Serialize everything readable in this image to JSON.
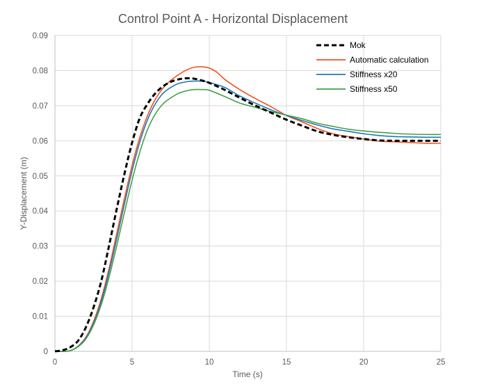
{
  "chart_data": {
    "type": "line",
    "title": "Control Point A - Horizontal Displacement",
    "xlabel": "Time (s)",
    "ylabel": "Y-Displacement (m)",
    "xlim": [
      0,
      25
    ],
    "ylim": [
      0,
      0.09
    ],
    "x_ticks": [
      0,
      5,
      10,
      15,
      20,
      25
    ],
    "y_ticks": [
      0,
      0.01,
      0.02,
      0.03,
      0.04,
      0.05,
      0.06,
      0.07,
      0.08,
      0.09
    ],
    "x_tick_labels": [
      "0",
      "5",
      "10",
      "15",
      "20",
      "25"
    ],
    "y_tick_labels": [
      "0",
      "0.01",
      "0.02",
      "0.03",
      "0.04",
      "0.05",
      "0.06",
      "0.07",
      "0.08",
      "0.09"
    ],
    "grid": true,
    "legend_position": "top-right",
    "series": [
      {
        "name": "Mok",
        "color": "#000000",
        "dash": true,
        "points": [
          [
            0,
            0
          ],
          [
            0.5,
            0.0003
          ],
          [
            1,
            0.0012
          ],
          [
            1.5,
            0.003
          ],
          [
            2,
            0.0068
          ],
          [
            2.5,
            0.0125
          ],
          [
            3,
            0.02
          ],
          [
            3.5,
            0.03
          ],
          [
            4,
            0.0405
          ],
          [
            4.5,
            0.0505
          ],
          [
            5,
            0.0595
          ],
          [
            5.5,
            0.0665
          ],
          [
            6,
            0.0705
          ],
          [
            6.5,
            0.0735
          ],
          [
            7,
            0.0755
          ],
          [
            7.5,
            0.0768
          ],
          [
            8,
            0.0775
          ],
          [
            8.5,
            0.0778
          ],
          [
            9,
            0.0777
          ],
          [
            9.5,
            0.0772
          ],
          [
            10,
            0.0765
          ],
          [
            11,
            0.0745
          ],
          [
            12,
            0.0722
          ],
          [
            13,
            0.07
          ],
          [
            14,
            0.068
          ],
          [
            15,
            0.066
          ],
          [
            16,
            0.0643
          ],
          [
            17,
            0.0627
          ],
          [
            18,
            0.0617
          ],
          [
            19,
            0.061
          ],
          [
            20,
            0.0605
          ],
          [
            21,
            0.0601
          ],
          [
            22,
            0.06
          ],
          [
            23,
            0.06
          ],
          [
            24,
            0.06
          ],
          [
            25,
            0.06
          ]
        ]
      },
      {
        "name": "Automatic calculation",
        "color": "#f4511e",
        "dash": false,
        "points": [
          [
            0,
            0
          ],
          [
            0.5,
            0
          ],
          [
            1,
            0.0002
          ],
          [
            1.5,
            0.0015
          ],
          [
            2,
            0.004
          ],
          [
            2.5,
            0.0085
          ],
          [
            3,
            0.015
          ],
          [
            3.5,
            0.0235
          ],
          [
            4,
            0.0335
          ],
          [
            4.5,
            0.0435
          ],
          [
            5,
            0.053
          ],
          [
            5.5,
            0.061
          ],
          [
            6,
            0.0672
          ],
          [
            6.5,
            0.0718
          ],
          [
            7,
            0.075
          ],
          [
            7.5,
            0.0772
          ],
          [
            8,
            0.0788
          ],
          [
            8.5,
            0.0801
          ],
          [
            9,
            0.0809
          ],
          [
            9.5,
            0.0811
          ],
          [
            10,
            0.0807
          ],
          [
            10.5,
            0.0795
          ],
          [
            11,
            0.0775
          ],
          [
            12,
            0.0745
          ],
          [
            13,
            0.072
          ],
          [
            14,
            0.0697
          ],
          [
            15,
            0.0672
          ],
          [
            16,
            0.0654
          ],
          [
            17,
            0.0635
          ],
          [
            18,
            0.062
          ],
          [
            19,
            0.0612
          ],
          [
            20,
            0.0605
          ],
          [
            21,
            0.0599
          ],
          [
            22,
            0.0597
          ],
          [
            23,
            0.0595
          ],
          [
            24,
            0.0593
          ],
          [
            25,
            0.0593
          ]
        ]
      },
      {
        "name": "Stiffness x20",
        "color": "#1f77b4",
        "dash": false,
        "points": [
          [
            0,
            0
          ],
          [
            0.5,
            0
          ],
          [
            1,
            0.0002
          ],
          [
            1.5,
            0.0014
          ],
          [
            2,
            0.0038
          ],
          [
            2.5,
            0.008
          ],
          [
            3,
            0.0142
          ],
          [
            3.5,
            0.0225
          ],
          [
            4,
            0.032
          ],
          [
            4.5,
            0.042
          ],
          [
            5,
            0.0515
          ],
          [
            5.5,
            0.0597
          ],
          [
            6,
            0.066
          ],
          [
            6.5,
            0.0705
          ],
          [
            7,
            0.0735
          ],
          [
            7.5,
            0.0752
          ],
          [
            8,
            0.0763
          ],
          [
            8.5,
            0.0768
          ],
          [
            9,
            0.077
          ],
          [
            9.5,
            0.077
          ],
          [
            10,
            0.0766
          ],
          [
            11,
            0.0752
          ],
          [
            12,
            0.0727
          ],
          [
            13,
            0.0707
          ],
          [
            14,
            0.0688
          ],
          [
            15,
            0.0672
          ],
          [
            16,
            0.0658
          ],
          [
            17,
            0.0645
          ],
          [
            18,
            0.0634
          ],
          [
            19,
            0.0627
          ],
          [
            20,
            0.062
          ],
          [
            21,
            0.0615
          ],
          [
            22,
            0.0612
          ],
          [
            23,
            0.0611
          ],
          [
            24,
            0.061
          ],
          [
            25,
            0.061
          ]
        ]
      },
      {
        "name": "Stiffness x50",
        "color": "#43a047",
        "dash": false,
        "points": [
          [
            0,
            0
          ],
          [
            0.5,
            0
          ],
          [
            1,
            0.0002
          ],
          [
            1.5,
            0.0013
          ],
          [
            2,
            0.0035
          ],
          [
            2.5,
            0.0075
          ],
          [
            3,
            0.0133
          ],
          [
            3.5,
            0.021
          ],
          [
            4,
            0.03
          ],
          [
            4.5,
            0.0395
          ],
          [
            5,
            0.0488
          ],
          [
            5.5,
            0.0568
          ],
          [
            6,
            0.0632
          ],
          [
            6.5,
            0.0676
          ],
          [
            7,
            0.0705
          ],
          [
            7.5,
            0.0722
          ],
          [
            8,
            0.0735
          ],
          [
            8.5,
            0.0742
          ],
          [
            9,
            0.0746
          ],
          [
            9.5,
            0.0746
          ],
          [
            10,
            0.0744
          ],
          [
            11,
            0.0726
          ],
          [
            12,
            0.0707
          ],
          [
            13,
            0.0695
          ],
          [
            14,
            0.0683
          ],
          [
            15,
            0.0673
          ],
          [
            16,
            0.0663
          ],
          [
            17,
            0.065
          ],
          [
            18,
            0.0641
          ],
          [
            19,
            0.0633
          ],
          [
            20,
            0.0628
          ],
          [
            21,
            0.0624
          ],
          [
            22,
            0.0621
          ],
          [
            23,
            0.0619
          ],
          [
            24,
            0.0618
          ],
          [
            25,
            0.0618
          ]
        ]
      }
    ]
  }
}
